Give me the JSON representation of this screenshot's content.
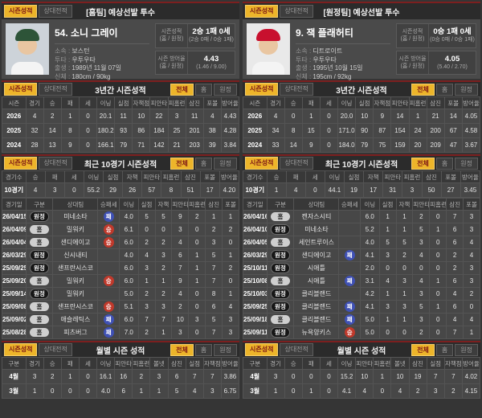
{
  "labels": {
    "tab_season": "시즌성적",
    "tab_h2h": "상대전적",
    "filter_all": "전체",
    "filter_home": "홈",
    "filter_away": "원정",
    "title_three_year": "3년간 시즌성적",
    "title_recent": "최근 10경기 시즌성적",
    "title_monthly": "월별 시즌 성적",
    "field_team": "소속",
    "field_hand": "투타",
    "field_birth": "출생",
    "field_body": "신체",
    "field_debut": "데뷔",
    "record_label": "시즌성적",
    "record_sub": "(홈 / 원정)",
    "era_label": "시즌 방어율",
    "era_sub": "(홈 / 원정)"
  },
  "theme": {
    "accent_yellow": "#edb52a",
    "accent_dark_red": "#7c1f1f",
    "win_badge_red": "#c0392b",
    "lose_badge_blue": "#3f51b5",
    "left_cap_color": "#2d5438",
    "right_cap_color": "#c8102e"
  },
  "left": {
    "header_title": "[홈팀] 예상선발 투수",
    "player": {
      "name": "54. 소니 그레이",
      "team": "보스턴",
      "hand": "우투우타",
      "birth": "1989년 11월 07일",
      "body": "180cm / 90kg",
      "debut": "-",
      "record": "2승 1패 0세",
      "record_detail": "(2승 0패 / 0승 1패)",
      "era": "4.43",
      "era_detail": "(1.46 / 9.00)"
    },
    "three_year": {
      "columns": [
        "시즌",
        "경기",
        "승",
        "패",
        "세",
        "이닝",
        "실점",
        "자책점",
        "피안타",
        "피홈런",
        "삼진",
        "포볼",
        "방어율"
      ],
      "rows": [
        [
          "2026",
          "4",
          "2",
          "1",
          "0",
          "20.1",
          "11",
          "10",
          "22",
          "3",
          "11",
          "4",
          "4.43"
        ],
        [
          "2025",
          "32",
          "14",
          "8",
          "0",
          "180.2",
          "93",
          "86",
          "184",
          "25",
          "201",
          "38",
          "4.28"
        ],
        [
          "2024",
          "28",
          "13",
          "9",
          "0",
          "166.1",
          "79",
          "71",
          "142",
          "21",
          "203",
          "39",
          "3.84"
        ]
      ]
    },
    "recent": {
      "columns": [
        "경기수",
        "승",
        "패",
        "세",
        "이닝",
        "실점",
        "자책",
        "피안타",
        "피홈런",
        "삼진",
        "포볼",
        "방어율"
      ],
      "rows": [
        [
          "10경기",
          "4",
          "3",
          "0",
          "55.2",
          "29",
          "26",
          "57",
          "8",
          "51",
          "17",
          "4.20"
        ]
      ]
    },
    "gamelog": {
      "columns": [
        "경기일",
        "구분",
        "상대팀",
        "승패세",
        "이닝",
        "실점",
        "자책",
        "피안타",
        "피홈런",
        "삼진",
        "포볼"
      ],
      "rows": [
        [
          "26/04/15",
          "원정",
          "미네소타",
          "패",
          "4.0",
          "5",
          "5",
          "9",
          "2",
          "1",
          "1"
        ],
        [
          "26/04/09",
          "홈",
          "밀워키",
          "승",
          "6.1",
          "0",
          "0",
          "3",
          "0",
          "2",
          "2"
        ],
        [
          "26/04/04",
          "홈",
          "샌디에이고",
          "승",
          "6.0",
          "2",
          "2",
          "4",
          "0",
          "3",
          "0"
        ],
        [
          "26/03/29",
          "원정",
          "신시내티",
          "",
          "4.0",
          "4",
          "3",
          "6",
          "1",
          "5",
          "1"
        ],
        [
          "25/09/25",
          "원정",
          "샌프란시스코",
          "",
          "6.0",
          "3",
          "2",
          "7",
          "1",
          "7",
          "2"
        ],
        [
          "25/09/20",
          "홈",
          "밀워키",
          "승",
          "6.0",
          "1",
          "1",
          "9",
          "1",
          "7",
          "0"
        ],
        [
          "25/09/14",
          "원정",
          "밀워키",
          "",
          "5.0",
          "2",
          "2",
          "4",
          "0",
          "8",
          "1"
        ],
        [
          "25/09/08",
          "홈",
          "샌프란시스코",
          "승",
          "5.1",
          "3",
          "3",
          "2",
          "0",
          "6",
          "4"
        ],
        [
          "25/09/02",
          "홈",
          "애슬레틱스",
          "패",
          "6.0",
          "7",
          "7",
          "10",
          "3",
          "5",
          "3"
        ],
        [
          "25/08/28",
          "홈",
          "피츠버그",
          "패",
          "7.0",
          "2",
          "1",
          "3",
          "0",
          "7",
          "3"
        ]
      ]
    },
    "monthly": {
      "columns": [
        "구분",
        "경기",
        "승",
        "패",
        "세",
        "이닝",
        "피안타",
        "피홈런",
        "볼넷",
        "삼진",
        "실점",
        "자책점",
        "방어율"
      ],
      "rows": [
        [
          "4월",
          "3",
          "2",
          "1",
          "0",
          "16.1",
          "16",
          "2",
          "3",
          "6",
          "7",
          "7",
          "3.86"
        ],
        [
          "3월",
          "1",
          "0",
          "0",
          "0",
          "4.0",
          "6",
          "1",
          "1",
          "5",
          "4",
          "3",
          "6.75"
        ]
      ]
    }
  },
  "right": {
    "header_title": "[원정팀] 예상선발 투수",
    "player": {
      "name": "9. 잭 플래허티",
      "team": "디트로이트",
      "hand": "우투우타",
      "birth": "1995년 10월 15일",
      "body": "195cm / 92kg",
      "debut": "-",
      "record": "0승 1패 0세",
      "record_detail": "(0승 0패 / 0승 1패)",
      "era": "4.05",
      "era_detail": "(5.40 / 2.70)"
    },
    "three_year": {
      "columns": [
        "시즌",
        "경기",
        "승",
        "패",
        "세",
        "이닝",
        "실점",
        "자책점",
        "피안타",
        "피홈런",
        "삼진",
        "포볼",
        "방어율"
      ],
      "rows": [
        [
          "2026",
          "4",
          "0",
          "1",
          "0",
          "20.0",
          "10",
          "9",
          "14",
          "1",
          "21",
          "14",
          "4.05"
        ],
        [
          "2025",
          "34",
          "8",
          "15",
          "0",
          "171.0",
          "90",
          "87",
          "154",
          "24",
          "200",
          "67",
          "4.58"
        ],
        [
          "2024",
          "33",
          "14",
          "9",
          "0",
          "184.0",
          "79",
          "75",
          "159",
          "20",
          "209",
          "47",
          "3.67"
        ]
      ]
    },
    "recent": {
      "columns": [
        "경기수",
        "승",
        "패",
        "세",
        "이닝",
        "실점",
        "자책",
        "피안타",
        "피홈런",
        "삼진",
        "포볼",
        "방어율"
      ],
      "rows": [
        [
          "10경기",
          "1",
          "4",
          "0",
          "44.1",
          "19",
          "17",
          "31",
          "3",
          "50",
          "27",
          "3.45"
        ]
      ]
    },
    "gamelog": {
      "columns": [
        "경기일",
        "구분",
        "상대팀",
        "승패세",
        "이닝",
        "실점",
        "자책",
        "피안타",
        "피홈런",
        "삼진",
        "포볼"
      ],
      "rows": [
        [
          "26/04/16",
          "홈",
          "캔자스시티",
          "",
          "6.0",
          "1",
          "1",
          "2",
          "0",
          "7",
          "3"
        ],
        [
          "26/04/10",
          "원정",
          "미네소타",
          "",
          "5.2",
          "1",
          "1",
          "5",
          "1",
          "6",
          "3"
        ],
        [
          "26/04/05",
          "홈",
          "세인트루이스",
          "",
          "4.0",
          "5",
          "5",
          "3",
          "0",
          "6",
          "4"
        ],
        [
          "26/03/29",
          "원정",
          "샌디에이고",
          "패",
          "4.1",
          "3",
          "2",
          "4",
          "0",
          "2",
          "4"
        ],
        [
          "25/10/11",
          "원정",
          "시애틀",
          "",
          "2.0",
          "0",
          "0",
          "0",
          "0",
          "2",
          "3"
        ],
        [
          "25/10/08",
          "홈",
          "시애틀",
          "패",
          "3.1",
          "4",
          "3",
          "4",
          "1",
          "6",
          "3"
        ],
        [
          "25/10/03",
          "원정",
          "클리블랜드",
          "",
          "4.2",
          "1",
          "1",
          "3",
          "0",
          "4",
          "2"
        ],
        [
          "25/09/25",
          "원정",
          "클리블랜드",
          "패",
          "4.1",
          "3",
          "3",
          "5",
          "1",
          "6",
          "0"
        ],
        [
          "25/09/18",
          "홈",
          "클리블랜드",
          "패",
          "5.0",
          "1",
          "1",
          "3",
          "0",
          "4",
          "4"
        ],
        [
          "25/09/11",
          "원정",
          "뉴욕양키스",
          "승",
          "5.0",
          "0",
          "0",
          "2",
          "0",
          "7",
          "1"
        ]
      ]
    },
    "monthly": {
      "columns": [
        "구분",
        "경기",
        "승",
        "패",
        "세",
        "이닝",
        "피안타",
        "피홈런",
        "볼넷",
        "삼진",
        "실점",
        "자책점",
        "방어율"
      ],
      "rows": [
        [
          "4월",
          "3",
          "0",
          "0",
          "0",
          "15.2",
          "10",
          "1",
          "10",
          "19",
          "7",
          "7",
          "4.02"
        ],
        [
          "3월",
          "1",
          "0",
          "1",
          "0",
          "4.1",
          "4",
          "0",
          "4",
          "2",
          "3",
          "2",
          "4.15"
        ]
      ]
    }
  }
}
